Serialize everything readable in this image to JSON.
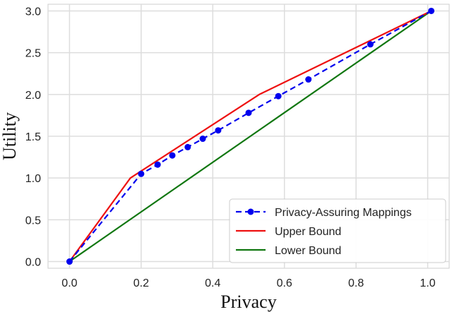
{
  "chart_data": {
    "type": "line",
    "xlabel": "Privacy",
    "ylabel": "Utility",
    "xlim": [
      -0.06,
      1.06
    ],
    "ylim": [
      -0.08,
      3.08
    ],
    "x_ticks": [
      0.0,
      0.2,
      0.4,
      0.6,
      0.8,
      1.0
    ],
    "x_tick_labels": [
      "0.0",
      "0.2",
      "0.4",
      "0.6",
      "0.8",
      "1.0"
    ],
    "y_ticks": [
      0.0,
      0.5,
      1.0,
      1.5,
      2.0,
      2.5,
      3.0
    ],
    "y_tick_labels": [
      "0.0",
      "0.5",
      "1.0",
      "1.5",
      "2.0",
      "2.5",
      "3.0"
    ],
    "grid": true,
    "legend_position": "bottom-right",
    "series": [
      {
        "name": "Privacy-Assuring Mappings",
        "color": "#0000ee",
        "style": "dashed",
        "marker": "circle",
        "points": [
          [
            0.0,
            0.0
          ],
          [
            0.2,
            1.05
          ],
          [
            0.246,
            1.16
          ],
          [
            0.287,
            1.27
          ],
          [
            0.33,
            1.37
          ],
          [
            0.372,
            1.47
          ],
          [
            0.415,
            1.57
          ],
          [
            0.5,
            1.78
          ],
          [
            0.583,
            1.98
          ],
          [
            0.667,
            2.18
          ],
          [
            0.84,
            2.6
          ],
          [
            1.01,
            3.0
          ]
        ]
      },
      {
        "name": "Upper Bound",
        "color": "#ee1111",
        "style": "solid",
        "marker": "none",
        "points": [
          [
            0.0,
            0.0
          ],
          [
            0.17,
            1.0
          ],
          [
            0.53,
            2.0
          ],
          [
            1.01,
            3.0
          ]
        ]
      },
      {
        "name": "Lower Bound",
        "color": "#117711",
        "style": "solid",
        "marker": "none",
        "points": [
          [
            0.0,
            0.0
          ],
          [
            1.01,
            3.0
          ]
        ]
      }
    ]
  }
}
